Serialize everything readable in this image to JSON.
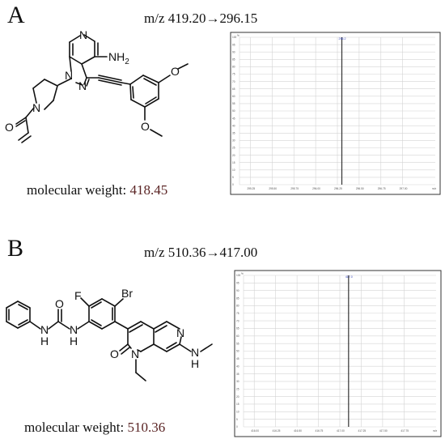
{
  "panels": [
    {
      "letter": "A",
      "mz": "m/z 419.20→296.15",
      "mw_label": "molecular weight: ",
      "mw_value": "418.45",
      "atoms": {
        "amine": "NH",
        "amine_sub": "2"
      },
      "spectrum": {
        "y_ticks": [
          "100",
          "95",
          "90",
          "85",
          "80",
          "75",
          "70",
          "65",
          "60",
          "55",
          "50",
          "45",
          "40",
          "35",
          "30",
          "25",
          "20",
          "15",
          "10",
          "5",
          "0"
        ],
        "x_ticks": [
          "295.25",
          "295.50",
          "295.75",
          "296.00",
          "296.25",
          "296.50",
          "296.75",
          "297.00",
          "m/z"
        ],
        "corner_label": "%",
        "peak_label": "296.2",
        "chart_data": {
          "type": "bar",
          "x": [
            296.15
          ],
          "values": [
            100
          ],
          "xlim": [
            295.0,
            297.2
          ],
          "ylim": [
            0,
            100
          ]
        }
      }
    },
    {
      "letter": "B",
      "mz": "m/z 510.36→417.00",
      "mw_label": "molecular weight: ",
      "mw_value": "510.36",
      "atoms": {
        "br": "Br",
        "f": "F"
      },
      "spectrum": {
        "y_ticks": [
          "100",
          "95",
          "90",
          "85",
          "80",
          "75",
          "70",
          "65",
          "60",
          "55",
          "50",
          "45",
          "40",
          "35",
          "30",
          "25",
          "20",
          "15",
          "10",
          "5",
          "0"
        ],
        "x_ticks": [
          "416.00",
          "416.25",
          "416.50",
          "416.75",
          "417.00",
          "417.25",
          "417.50",
          "417.75",
          "m/z"
        ],
        "corner_label": "%",
        "peak_label": "417.0",
        "chart_data": {
          "type": "bar",
          "x": [
            417.0
          ],
          "values": [
            100
          ],
          "xlim": [
            415.8,
            418.0
          ],
          "ylim": [
            0,
            100
          ]
        }
      }
    }
  ],
  "atom_labels": {
    "N": "N",
    "O": "O",
    "H": "H"
  }
}
